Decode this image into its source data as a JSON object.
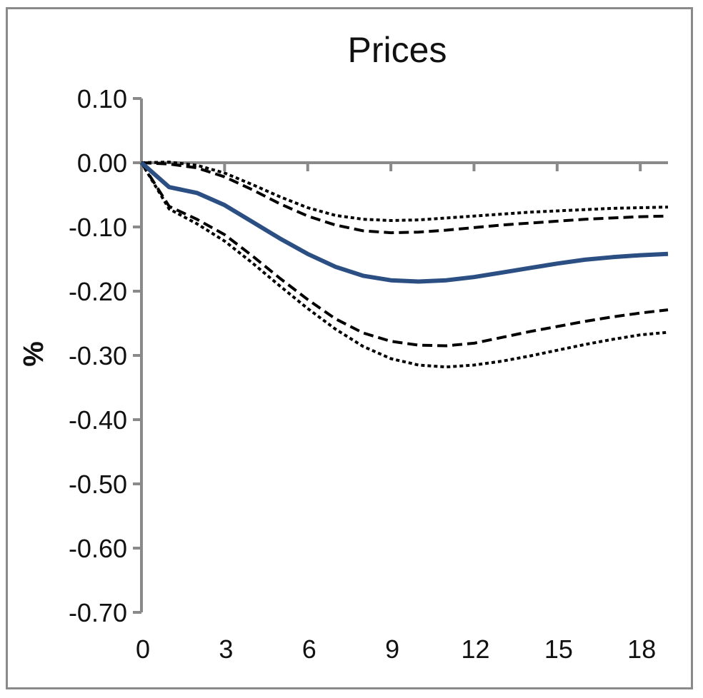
{
  "chart_data": {
    "type": "line",
    "title": "Prices",
    "xlabel": "",
    "ylabel": "%",
    "xlim": [
      0,
      19
    ],
    "ylim": [
      -0.7,
      0.1
    ],
    "x_ticks": [
      0,
      3,
      6,
      9,
      12,
      15,
      18
    ],
    "x_tick_labels": [
      "0",
      "3",
      "6",
      "9",
      "12",
      "15",
      "18"
    ],
    "y_ticks": [
      0.1,
      0.0,
      -0.1,
      -0.2,
      -0.3,
      -0.4,
      -0.5,
      -0.6,
      -0.7
    ],
    "y_tick_labels": [
      "0.10",
      "0.00",
      "-0.10",
      "-0.20",
      "-0.30",
      "-0.40",
      "-0.50",
      "-0.60",
      "-0.70"
    ],
    "grid": false,
    "x": [
      0,
      1,
      2,
      3,
      4,
      5,
      6,
      7,
      8,
      9,
      10,
      11,
      12,
      13,
      14,
      15,
      16,
      17,
      18,
      19
    ],
    "series": [
      {
        "role": "point-estimate",
        "style": "solid",
        "color": "#2b4f82",
        "values": [
          0.0,
          -0.038,
          -0.047,
          -0.066,
          -0.092,
          -0.118,
          -0.142,
          -0.162,
          -0.176,
          -0.183,
          -0.185,
          -0.183,
          -0.178,
          -0.171,
          -0.164,
          -0.157,
          -0.151,
          -0.147,
          -0.144,
          -0.142
        ]
      },
      {
        "role": "upper-band-inner",
        "style": "dashed",
        "color": "#000000",
        "values": [
          0.0,
          -0.002,
          -0.008,
          -0.022,
          -0.042,
          -0.064,
          -0.083,
          -0.097,
          -0.106,
          -0.109,
          -0.108,
          -0.105,
          -0.101,
          -0.097,
          -0.094,
          -0.091,
          -0.088,
          -0.086,
          -0.084,
          -0.083
        ]
      },
      {
        "role": "upper-band-outer",
        "style": "dotted",
        "color": "#000000",
        "values": [
          0.0,
          0.001,
          -0.004,
          -0.016,
          -0.034,
          -0.053,
          -0.07,
          -0.082,
          -0.088,
          -0.09,
          -0.089,
          -0.086,
          -0.083,
          -0.08,
          -0.077,
          -0.075,
          -0.073,
          -0.071,
          -0.07,
          -0.069
        ]
      },
      {
        "role": "lower-band-inner",
        "style": "dashed",
        "color": "#000000",
        "values": [
          0.0,
          -0.068,
          -0.088,
          -0.112,
          -0.145,
          -0.18,
          -0.213,
          -0.243,
          -0.265,
          -0.278,
          -0.284,
          -0.285,
          -0.281,
          -0.272,
          -0.263,
          -0.255,
          -0.247,
          -0.24,
          -0.234,
          -0.229
        ]
      },
      {
        "role": "lower-band-outer",
        "style": "dotted",
        "color": "#000000",
        "values": [
          0.0,
          -0.072,
          -0.095,
          -0.122,
          -0.156,
          -0.192,
          -0.227,
          -0.259,
          -0.286,
          -0.305,
          -0.315,
          -0.318,
          -0.315,
          -0.309,
          -0.301,
          -0.292,
          -0.283,
          -0.275,
          -0.268,
          -0.264
        ]
      }
    ]
  }
}
